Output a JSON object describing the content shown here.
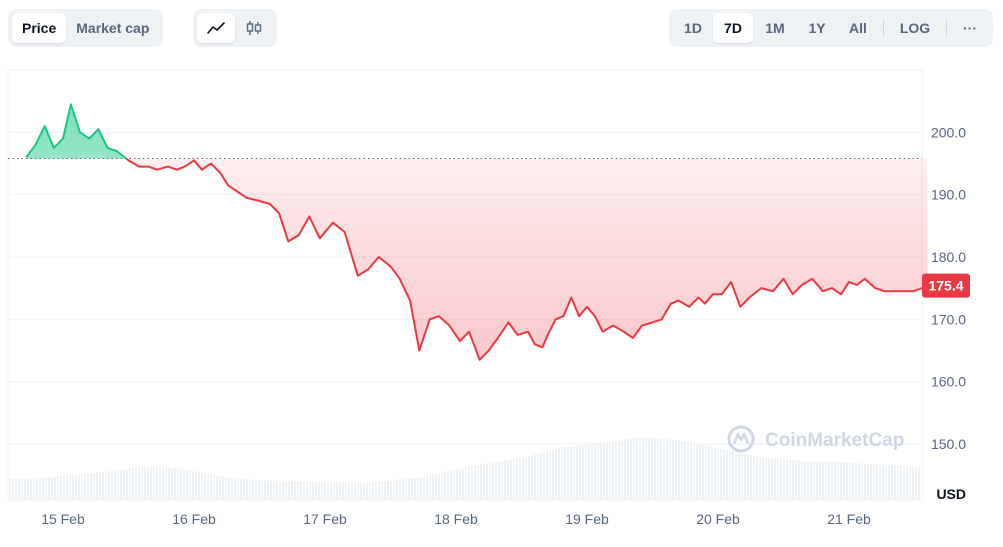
{
  "toolbar": {
    "type_options": [
      "Price",
      "Market cap"
    ],
    "type_selected": "Price",
    "style_icons": [
      "line-chart-icon",
      "candlestick-icon"
    ],
    "range_options": [
      "1D",
      "7D",
      "1M",
      "1Y",
      "All"
    ],
    "range_selected": "7D",
    "log_label": "LOG",
    "more_label": "···"
  },
  "watermark": "CoinMarketCap",
  "currency_label": "USD",
  "colors": {
    "up": "#16c784",
    "down": "#ea3943",
    "grid": "#eff2f5",
    "text": "#58667e"
  },
  "chart_data": {
    "type": "area",
    "x_tick_labels": [
      "15 Feb",
      "16 Feb",
      "17 Feb",
      "18 Feb",
      "19 Feb",
      "20 Feb",
      "21 Feb"
    ],
    "y_ticks": [
      150.0,
      160.0,
      170.0,
      180.0,
      190.0,
      200.0
    ],
    "y_tick_labels": [
      "150.0",
      "160.0",
      "170.0",
      "180.0",
      "190.0",
      "200.0"
    ],
    "ylim": [
      141,
      210
    ],
    "baseline": 195.8,
    "current_price": 175.4,
    "current_price_label": "175.4",
    "grid": true,
    "series": [
      {
        "x": [
          14.72,
          14.79,
          14.86,
          14.93,
          15.0,
          15.06,
          15.13,
          15.2,
          15.27,
          15.34,
          15.41,
          15.5,
          15.58,
          15.65,
          15.72,
          15.8,
          15.87,
          15.93,
          16.0,
          16.06,
          16.13,
          16.2,
          16.26,
          16.33,
          16.4,
          16.5,
          16.58,
          16.65,
          16.72,
          16.8,
          16.88,
          16.96,
          17.06,
          17.15,
          17.25,
          17.33,
          17.41,
          17.5,
          17.57,
          17.65,
          17.72,
          17.8,
          17.87,
          17.95,
          18.03,
          18.1,
          18.18,
          18.25,
          18.32,
          18.4,
          18.47,
          18.55,
          18.6,
          18.66,
          18.7,
          18.76,
          18.82,
          18.88,
          18.94,
          19.0,
          19.06,
          19.12,
          19.2,
          19.28,
          19.35,
          19.42,
          19.5,
          19.57,
          19.64,
          19.7,
          19.78,
          19.85,
          19.9,
          19.96,
          20.03,
          20.1,
          20.17,
          20.24,
          20.33,
          20.42,
          20.5,
          20.57,
          20.64,
          20.72,
          20.8,
          20.87,
          20.94,
          21.0,
          21.06,
          21.12,
          21.2,
          21.27,
          21.34,
          21.42,
          21.49,
          21.56,
          21.6
        ],
        "values": [
          196.0,
          198.0,
          201.0,
          197.5,
          199.0,
          204.5,
          200.0,
          199.0,
          200.5,
          197.5,
          197.0,
          195.5,
          194.5,
          194.5,
          194.0,
          194.5,
          194.0,
          194.5,
          195.5,
          194.0,
          195.0,
          193.5,
          191.5,
          190.5,
          189.5,
          189.0,
          188.5,
          187.0,
          182.5,
          183.5,
          186.5,
          183.0,
          185.5,
          184.0,
          177.0,
          178.0,
          180.0,
          178.5,
          176.5,
          173.0,
          165.0,
          170.0,
          170.5,
          169.0,
          166.5,
          168.0,
          163.5,
          165.0,
          167.0,
          169.5,
          167.5,
          168.0,
          166.0,
          165.5,
          167.5,
          170.0,
          170.5,
          173.5,
          170.5,
          172.0,
          170.5,
          168.0,
          169.0,
          168.0,
          167.0,
          169.0,
          169.5,
          170.0,
          172.5,
          173.0,
          172.0,
          173.5,
          172.5,
          174.0,
          174.0,
          176.0,
          172.0,
          173.5,
          175.0,
          174.5,
          176.5,
          174.0,
          175.5,
          176.5,
          174.5,
          175.0,
          174.0,
          176.0,
          175.5,
          176.5,
          175.0,
          174.5,
          174.5,
          174.5,
          174.5,
          175.0,
          175.5
        ]
      }
    ],
    "volume": {
      "x": [
        14.72,
        15.0,
        15.3,
        15.6,
        15.9,
        16.2,
        16.5,
        16.8,
        17.0,
        17.3,
        17.5,
        17.7,
        17.9,
        18.1,
        18.3,
        18.5,
        18.6,
        18.8,
        19.0,
        19.2,
        19.4,
        19.55,
        19.7,
        19.9,
        20.1,
        20.3,
        20.5,
        20.7,
        20.9,
        21.1,
        21.3,
        21.5,
        21.6
      ],
      "values": [
        30,
        35,
        40,
        48,
        45,
        33,
        28,
        27,
        26,
        25,
        28,
        32,
        40,
        48,
        55,
        60,
        65,
        75,
        80,
        84,
        90,
        88,
        85,
        78,
        70,
        62,
        58,
        55,
        55,
        52,
        50,
        48,
        46
      ]
    }
  }
}
